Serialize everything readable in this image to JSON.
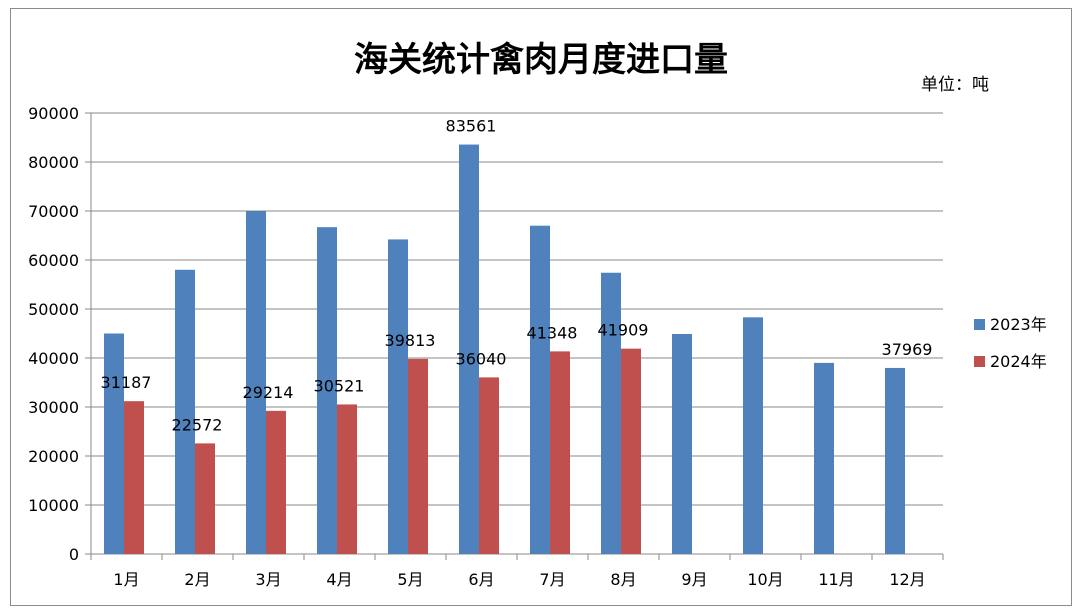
{
  "chart_data": {
    "type": "bar",
    "title": "海关统计禽肉月度进口量",
    "unit_label": "单位：吨",
    "categories": [
      "1月",
      "2月",
      "3月",
      "4月",
      "5月",
      "6月",
      "7月",
      "8月",
      "9月",
      "10月",
      "11月",
      "12月"
    ],
    "series": [
      {
        "name": "2023年",
        "color": "#4f81bd",
        "values": [
          45000,
          58000,
          70000,
          66700,
          64200,
          83561,
          67000,
          57400,
          44900,
          48300,
          39000,
          37969
        ],
        "labels": [
          null,
          null,
          null,
          null,
          null,
          "83561",
          null,
          null,
          null,
          null,
          null,
          "37969"
        ]
      },
      {
        "name": "2024年",
        "color": "#c0504d",
        "values": [
          31187,
          22572,
          29214,
          30521,
          39813,
          36040,
          41348,
          41909,
          null,
          null,
          null,
          null
        ],
        "labels": [
          "31187",
          "22572",
          "29214",
          "30521",
          "39813",
          "36040",
          "41348",
          "41909",
          null,
          null,
          null,
          null
        ]
      }
    ],
    "ylim": [
      0,
      90000
    ],
    "yticks": [
      "0",
      "10000",
      "20000",
      "30000",
      "40000",
      "50000",
      "60000",
      "70000",
      "80000",
      "90000"
    ],
    "xlabel": "",
    "ylabel": "",
    "grid": true,
    "legend_position": "right"
  }
}
